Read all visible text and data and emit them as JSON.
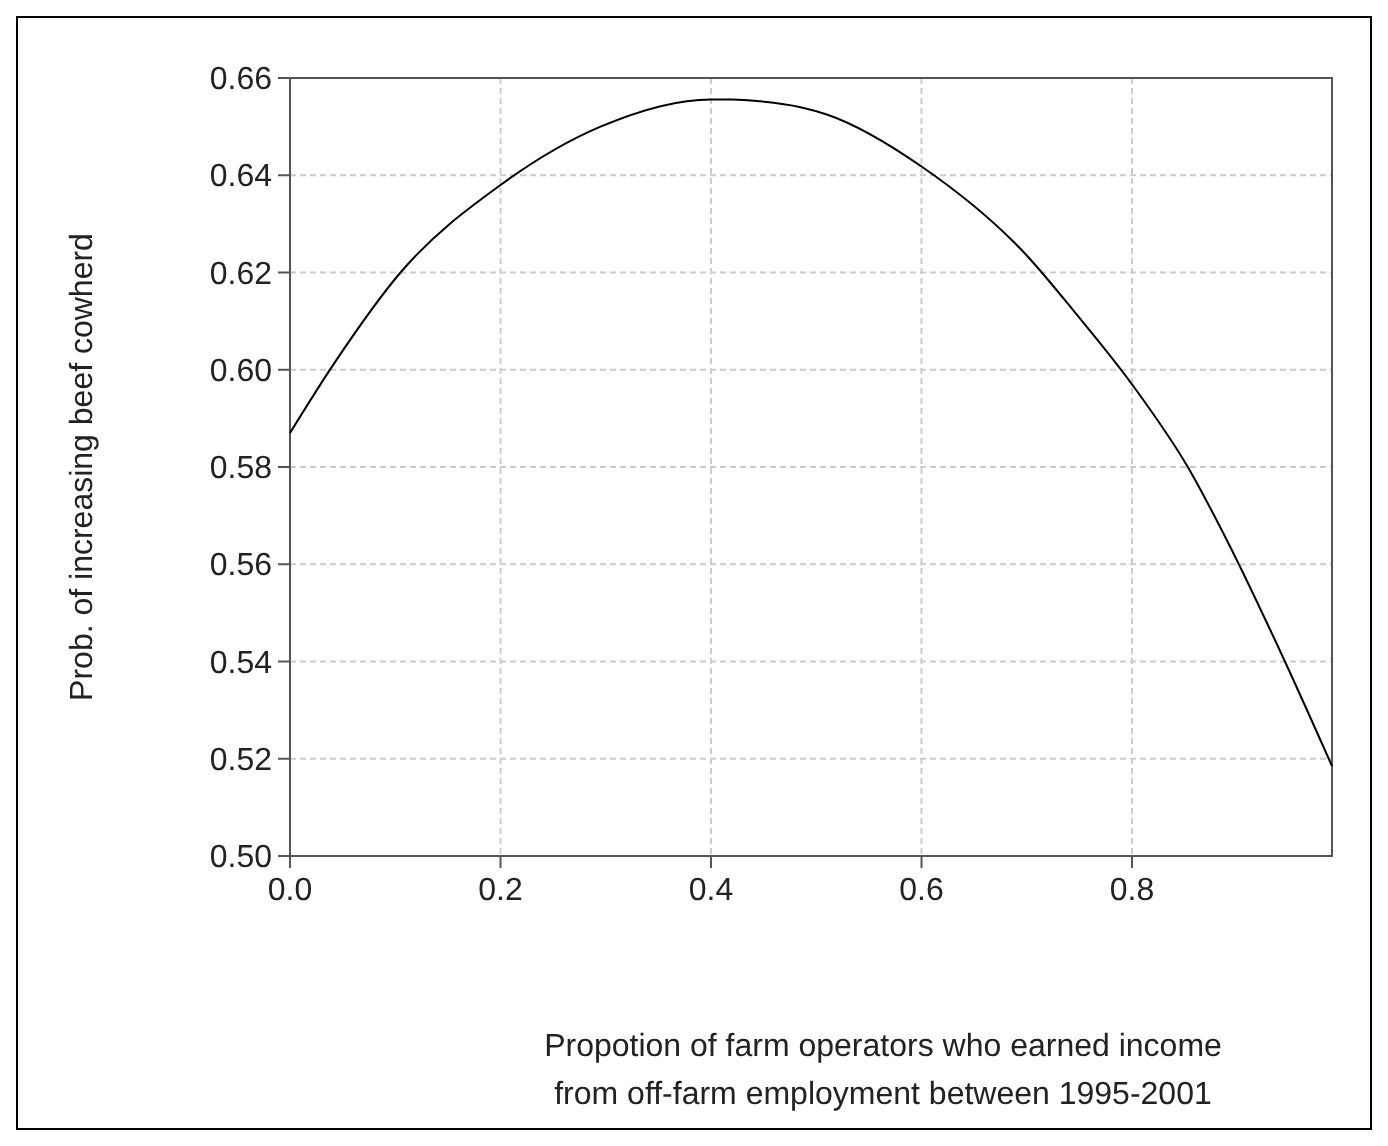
{
  "chart_data": {
    "type": "line",
    "xlabel": "Propotion of farm operators who earned income\nfrom off-farm employment between 1995-2001",
    "ylabel": "Prob. of increasing beef cowherd",
    "x": [
      0,
      0.041,
      0.105,
      0.2,
      0.295,
      0.4,
      0.42,
      0.447,
      0.485,
      0.51,
      0.6,
      0.7,
      0.745,
      0.8,
      0.853,
      0.89,
      0.941,
      0.99
    ],
    "series": [
      {
        "color": "#000000",
        "values": [
          0.587,
          0.601,
          0.62,
          0.638,
          0.65,
          0.6556,
          0.6556,
          0.6552,
          0.654,
          0.6525,
          0.6418,
          0.6235,
          0.612,
          0.597,
          0.58,
          0.565,
          0.542,
          0.5185
        ]
      }
    ],
    "xlim": [
      0,
      0.99
    ],
    "xticks": [
      {
        "value": 0,
        "label": "0.0"
      },
      0.2,
      0.4,
      0.6,
      0.8
    ],
    "ylim": [
      0.5,
      0.66
    ],
    "yticks": [
      {
        "value": 0.5,
        "label": "0.50"
      },
      {
        "value": 0.52,
        "label": "0.52"
      },
      {
        "value": 0.54,
        "label": "0.54"
      },
      {
        "value": 0.56,
        "label": "0.56"
      },
      {
        "value": 0.58,
        "label": "0.58"
      },
      {
        "value": 0.6,
        "label": "0.60"
      },
      {
        "value": 0.62,
        "label": "0.62"
      },
      {
        "value": 0.64,
        "label": "0.64"
      },
      {
        "value": 0.66,
        "label": "0.66"
      }
    ],
    "grid": true,
    "marker": "none",
    "line_style": "solid"
  }
}
